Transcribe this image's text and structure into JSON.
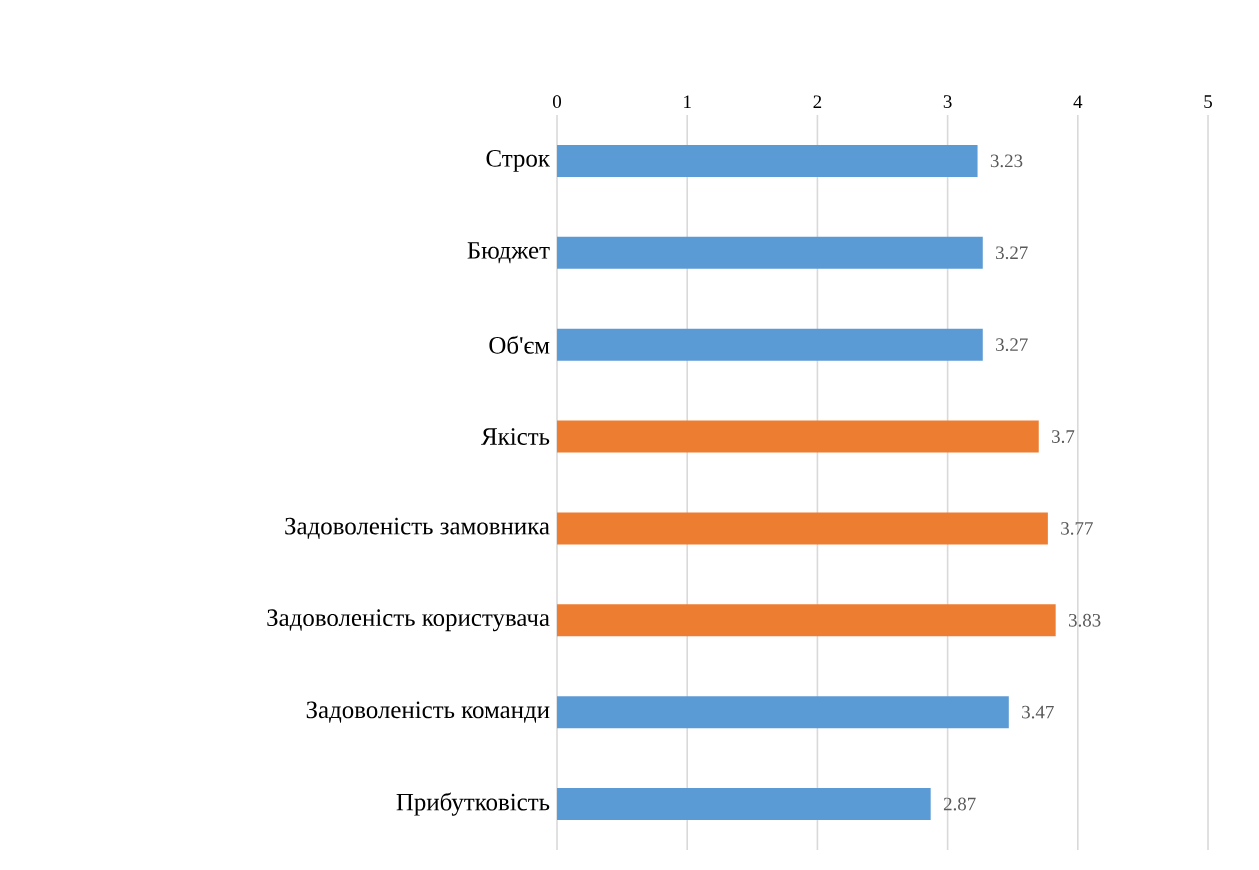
{
  "chart_data": {
    "type": "bar",
    "orientation": "horizontal",
    "categories": [
      "Строк",
      "Бюджет",
      "Об'єм",
      "Якість",
      "Задоволеність замовника",
      "Задоволеність користувача",
      "Задоволеність команди",
      "Прибутковість"
    ],
    "values": [
      3.23,
      3.27,
      3.27,
      3.7,
      3.77,
      3.83,
      3.47,
      2.87
    ],
    "colors": [
      "#5b9bd5",
      "#5b9bd5",
      "#5b9bd5",
      "#ed7d31",
      "#ed7d31",
      "#ed7d31",
      "#5b9bd5",
      "#5b9bd5"
    ],
    "xlim": [
      0,
      5
    ],
    "xticks": [
      0,
      1,
      2,
      3,
      4,
      5
    ],
    "grid": "x",
    "data_labels": true
  }
}
